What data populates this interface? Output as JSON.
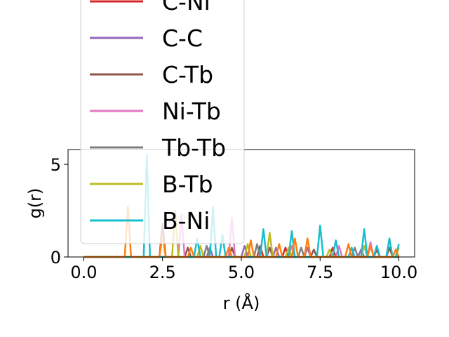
{
  "chart_data": {
    "type": "line",
    "title": "",
    "xlabel": "r (Å)",
    "ylabel": "g(r)",
    "xlim": [
      -0.5,
      10.5
    ],
    "ylim": [
      0,
      5.8
    ],
    "xticks": [
      0.0,
      2.5,
      5.0,
      7.5,
      10.0
    ],
    "xtick_labels": [
      "0.0",
      "2.5",
      "5.0",
      "7.5",
      "10.0"
    ],
    "yticks": [
      0,
      5
    ],
    "ytick_labels": [
      "0",
      "5"
    ],
    "grid": false,
    "legend_position": "upper-left, extending above the plot area",
    "legend_partially_visible": "C-Ni",
    "series": [
      {
        "name": "C-Ni",
        "color": "#d62728",
        "points": [
          [
            0,
            0
          ],
          [
            5.5,
            0
          ],
          [
            5.6,
            0.6
          ],
          [
            5.7,
            0
          ],
          [
            6.3,
            0
          ],
          [
            6.4,
            0.5
          ],
          [
            6.5,
            0
          ],
          [
            7.8,
            0
          ],
          [
            7.9,
            0.5
          ],
          [
            8.0,
            0
          ],
          [
            9.2,
            0
          ],
          [
            9.3,
            0.4
          ],
          [
            9.4,
            0
          ],
          [
            10,
            0
          ]
        ]
      },
      {
        "name": "C-C",
        "color": "#9467bd",
        "points": [
          [
            0,
            0
          ],
          [
            3.9,
            0
          ],
          [
            4.0,
            0.5
          ],
          [
            4.1,
            0
          ],
          [
            5.0,
            0
          ],
          [
            5.1,
            0.6
          ],
          [
            5.2,
            0
          ],
          [
            6.0,
            0
          ],
          [
            6.1,
            0.5
          ],
          [
            6.2,
            0
          ],
          [
            7.0,
            0
          ],
          [
            7.1,
            0.5
          ],
          [
            7.2,
            0
          ],
          [
            8.7,
            0
          ],
          [
            8.8,
            0.4
          ],
          [
            8.9,
            0
          ],
          [
            10,
            0
          ]
        ]
      },
      {
        "name": "C-Tb",
        "color": "#8c564b",
        "points": [
          [
            0,
            0
          ],
          [
            2.4,
            0
          ],
          [
            2.5,
            1.8
          ],
          [
            2.6,
            0
          ],
          [
            3.2,
            0
          ],
          [
            3.3,
            0.5
          ],
          [
            3.4,
            0
          ],
          [
            4.6,
            0
          ],
          [
            4.7,
            0.5
          ],
          [
            4.8,
            0
          ],
          [
            5.8,
            0
          ],
          [
            5.9,
            0.5
          ],
          [
            6.0,
            0
          ],
          [
            7.2,
            0
          ],
          [
            7.3,
            0.4
          ],
          [
            7.4,
            0
          ],
          [
            9.6,
            0
          ],
          [
            9.7,
            0.5
          ],
          [
            9.8,
            0
          ],
          [
            10,
            0
          ]
        ]
      },
      {
        "name": "Ni-Tb",
        "color": "#e377c2",
        "points": [
          [
            0,
            0
          ],
          [
            3.0,
            0
          ],
          [
            3.1,
            2.3
          ],
          [
            3.2,
            0
          ],
          [
            4.6,
            0
          ],
          [
            4.7,
            2.1
          ],
          [
            4.8,
            0
          ],
          [
            6.5,
            0
          ],
          [
            6.6,
            0.6
          ],
          [
            6.7,
            0
          ],
          [
            8.0,
            0
          ],
          [
            8.1,
            0.6
          ],
          [
            8.2,
            0
          ],
          [
            9.0,
            0
          ],
          [
            9.1,
            0.8
          ],
          [
            9.2,
            0
          ],
          [
            10,
            0
          ]
        ]
      },
      {
        "name": "Tb-Tb",
        "color": "#7f7f7f",
        "points": [
          [
            0,
            0
          ],
          [
            3.8,
            0
          ],
          [
            3.9,
            0.6
          ],
          [
            4.0,
            0
          ],
          [
            5.4,
            0
          ],
          [
            5.5,
            0.7
          ],
          [
            5.6,
            0
          ],
          [
            6.8,
            0
          ],
          [
            6.9,
            0.5
          ],
          [
            7.0,
            0
          ],
          [
            8.5,
            0
          ],
          [
            8.6,
            0.5
          ],
          [
            8.7,
            0
          ],
          [
            10,
            0
          ]
        ]
      },
      {
        "name": "B-Tb",
        "color": "#bcbd22",
        "points": [
          [
            0,
            0
          ],
          [
            2.8,
            0
          ],
          [
            2.9,
            2.5
          ],
          [
            3.0,
            0
          ],
          [
            3.6,
            0
          ],
          [
            3.7,
            0.6
          ],
          [
            3.8,
            0
          ],
          [
            5.1,
            0
          ],
          [
            5.2,
            0.7
          ],
          [
            5.3,
            0
          ],
          [
            5.8,
            0
          ],
          [
            5.9,
            1.3
          ],
          [
            6.0,
            0
          ],
          [
            6.4,
            0
          ],
          [
            6.5,
            0.5
          ],
          [
            6.6,
            0
          ],
          [
            7.7,
            0
          ],
          [
            7.8,
            0.4
          ],
          [
            7.9,
            0
          ],
          [
            8.8,
            0
          ],
          [
            8.9,
            0.6
          ],
          [
            9.0,
            0
          ],
          [
            9.9,
            0
          ],
          [
            10,
            0.5
          ]
        ]
      },
      {
        "name": "B-Ni",
        "color": "#17becf",
        "points": [
          [
            0,
            0
          ],
          [
            1.9,
            0
          ],
          [
            2.0,
            5.5
          ],
          [
            2.1,
            0
          ],
          [
            3.5,
            0
          ],
          [
            3.6,
            1.0
          ],
          [
            3.7,
            0
          ],
          [
            4.0,
            0
          ],
          [
            4.1,
            2.7
          ],
          [
            4.2,
            0
          ],
          [
            4.3,
            0
          ],
          [
            4.4,
            1.2
          ],
          [
            4.5,
            0
          ],
          [
            5.6,
            0
          ],
          [
            5.7,
            1.5
          ],
          [
            5.8,
            0
          ],
          [
            6.5,
            0
          ],
          [
            6.6,
            1.4
          ],
          [
            6.7,
            0
          ],
          [
            7.4,
            0
          ],
          [
            7.5,
            1.7
          ],
          [
            7.6,
            0
          ],
          [
            7.9,
            0
          ],
          [
            8.0,
            0.9
          ],
          [
            8.1,
            0
          ],
          [
            8.4,
            0
          ],
          [
            8.5,
            0.5
          ],
          [
            8.6,
            0
          ],
          [
            8.8,
            0
          ],
          [
            8.9,
            1.5
          ],
          [
            9.0,
            0
          ],
          [
            9.2,
            0
          ],
          [
            9.3,
            0.6
          ],
          [
            9.4,
            0
          ],
          [
            9.6,
            0
          ],
          [
            9.7,
            1.0
          ],
          [
            9.8,
            0
          ],
          [
            9.9,
            0
          ],
          [
            10,
            0.7
          ]
        ]
      },
      {
        "name": "",
        "color": "#ff7f0e",
        "points": [
          [
            0,
            0
          ],
          [
            1.3,
            0
          ],
          [
            1.4,
            2.7
          ],
          [
            1.5,
            0
          ],
          [
            2.4,
            0
          ],
          [
            2.5,
            1.2
          ],
          [
            2.6,
            0
          ],
          [
            3.3,
            0
          ],
          [
            3.4,
            0.5
          ],
          [
            3.5,
            0
          ],
          [
            4.5,
            0
          ],
          [
            4.6,
            0.5
          ],
          [
            4.7,
            0
          ],
          [
            5.2,
            0
          ],
          [
            5.3,
            0.9
          ],
          [
            5.4,
            0
          ],
          [
            6.1,
            0
          ],
          [
            6.2,
            0.7
          ],
          [
            6.3,
            0
          ],
          [
            6.6,
            0
          ],
          [
            6.7,
            1.0
          ],
          [
            6.8,
            0
          ],
          [
            7.0,
            0
          ],
          [
            7.1,
            1.0
          ],
          [
            7.2,
            0
          ],
          [
            8.3,
            0
          ],
          [
            8.4,
            0.7
          ],
          [
            8.5,
            0
          ],
          [
            9.0,
            0
          ],
          [
            9.1,
            0.6
          ],
          [
            9.2,
            0
          ],
          [
            9.8,
            0
          ],
          [
            9.9,
            0.4
          ],
          [
            10,
            0
          ]
        ]
      }
    ]
  }
}
